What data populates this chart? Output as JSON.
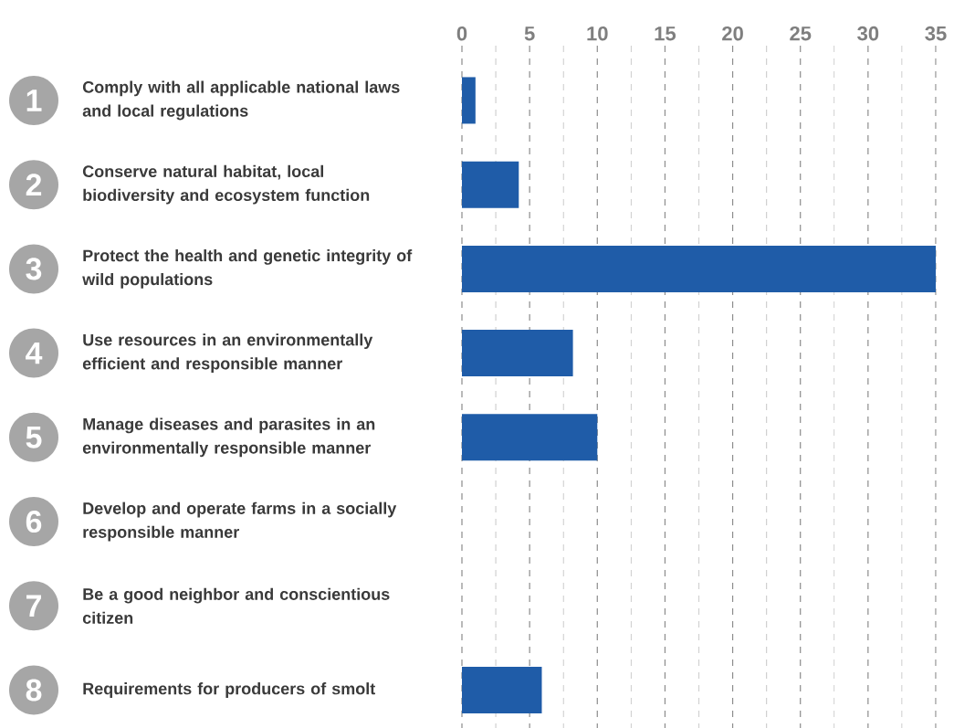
{
  "chart_data": {
    "type": "bar",
    "orientation": "horizontal",
    "categories": [
      "Comply with all applicable national laws and local regulations",
      "Conserve natural habitat, local biodiversity and ecosystem function",
      "Protect the health and genetic integrity of wild populations",
      "Use resources in an environmentally efficient and responsible manner",
      "Manage diseases and parasites in an environmentally responsible manner",
      "Develop and operate farms in a socially responsible manner",
      "Be a good neighbor and conscientious citizen",
      "Requirements for producers of smolt"
    ],
    "values": [
      1,
      4.2,
      35,
      8.2,
      10,
      0,
      0,
      5.9
    ],
    "color": "#1f5ca8",
    "xlim": [
      0,
      35
    ],
    "xticks": [
      0,
      {
        "value": 2.5,
        "label": null
      },
      5,
      {
        "value": 7.5,
        "label": null
      },
      10,
      {
        "value": 12.5,
        "label": null
      },
      15,
      {
        "value": 17.5,
        "label": null
      },
      20,
      {
        "value": 22.5,
        "label": null
      },
      25,
      {
        "value": 27.5,
        "label": null
      },
      30,
      {
        "value": 32.5,
        "label": null
      },
      35
    ],
    "grid": "x",
    "annotations": [
      "1",
      "2",
      "3",
      "4",
      "5",
      "6",
      "7",
      "8"
    ]
  }
}
